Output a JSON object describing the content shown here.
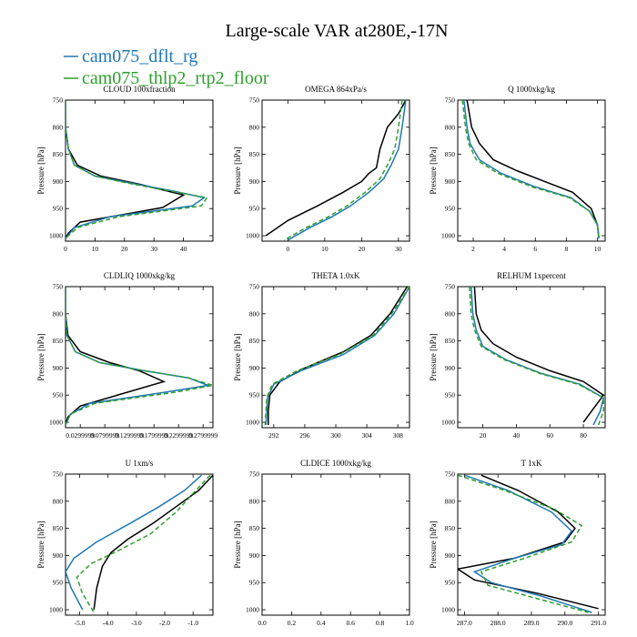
{
  "figure": {
    "title": "Large-scale VAR at280E,-17N",
    "legend": [
      {
        "label": "cam075_dflt_rg",
        "color": "#1f77b4"
      },
      {
        "label": "cam075_thlp2_rtp2_floor",
        "color": "#2ca02c"
      }
    ],
    "obs_color": "#000000"
  },
  "chart_data": [
    {
      "type": "line",
      "title": "CLOUD  100xfraction",
      "ylabel": "Pressure [hPa]",
      "ylim": [
        1010,
        750
      ],
      "yticks": [
        750,
        800,
        850,
        900,
        950,
        1000
      ],
      "xlim": [
        0,
        50
      ],
      "xticks": [
        0,
        10,
        20,
        30,
        40
      ],
      "xticklabels": [
        "0",
        "10",
        "20",
        "30",
        "40"
      ],
      "series": [
        {
          "color": "#000000",
          "dash": "",
          "x": [
            0,
            0,
            1,
            4,
            12,
            25,
            40,
            33,
            5,
            1,
            0
          ],
          "y": [
            750,
            800,
            840,
            870,
            890,
            905,
            925,
            948,
            975,
            995,
            1005
          ]
        },
        {
          "color": "#1f77b4",
          "dash": "",
          "x": [
            0,
            0,
            1,
            3,
            10,
            24,
            37,
            47,
            43,
            15,
            3,
            0
          ],
          "y": [
            750,
            800,
            840,
            870,
            890,
            905,
            918,
            930,
            945,
            965,
            985,
            1005
          ]
        },
        {
          "color": "#2ca02c",
          "dash": "5,3",
          "x": [
            0,
            0,
            1,
            3,
            10,
            23,
            36,
            48,
            46,
            18,
            4,
            0
          ],
          "y": [
            750,
            800,
            840,
            870,
            890,
            905,
            918,
            930,
            945,
            965,
            985,
            1005
          ]
        }
      ]
    },
    {
      "type": "line",
      "title": "OMEGA  864xPa/s",
      "ylabel": "",
      "ylim": [
        1010,
        750
      ],
      "yticks": [
        750,
        800,
        850,
        900,
        950,
        1000
      ],
      "xlim": [
        -7,
        33
      ],
      "xticks": [
        0,
        10,
        20,
        30
      ],
      "xticklabels": [
        "0",
        "10",
        "20",
        "30"
      ],
      "series": [
        {
          "color": "#000000",
          "dash": "",
          "x": [
            32,
            30,
            27,
            25,
            24,
            22,
            20,
            15,
            8,
            0,
            -6
          ],
          "y": [
            750,
            775,
            800,
            840,
            875,
            885,
            900,
            920,
            945,
            972,
            1000
          ]
        },
        {
          "color": "#1f77b4",
          "dash": "",
          "x": [
            32,
            31,
            30,
            28,
            26,
            22,
            17,
            12,
            6,
            0
          ],
          "y": [
            750,
            800,
            840,
            870,
            895,
            920,
            945,
            965,
            985,
            1008
          ]
        },
        {
          "color": "#2ca02c",
          "dash": "5,3",
          "x": [
            31,
            30,
            29,
            27,
            25,
            21,
            16,
            11,
            5,
            -1
          ],
          "y": [
            750,
            800,
            840,
            870,
            895,
            920,
            945,
            965,
            985,
            1008
          ]
        }
      ]
    },
    {
      "type": "line",
      "title": "Q  1000xkg/kg",
      "ylabel": "",
      "ylim": [
        1010,
        750
      ],
      "yticks": [
        750,
        800,
        850,
        900,
        950,
        1000
      ],
      "xlim": [
        1,
        10.5
      ],
      "xticks": [
        2,
        4,
        6,
        8,
        10
      ],
      "xticklabels": [
        "2",
        "4",
        "6",
        "8",
        "10"
      ],
      "series": [
        {
          "color": "#000000",
          "dash": "",
          "x": [
            1.6,
            1.9,
            2.4,
            3.3,
            4.8,
            6.6,
            8.4,
            9.6,
            10.0,
            10.1
          ],
          "y": [
            750,
            800,
            830,
            860,
            880,
            900,
            920,
            950,
            980,
            1005
          ]
        },
        {
          "color": "#1f77b4",
          "dash": "",
          "x": [
            1.4,
            1.6,
            1.8,
            2.4,
            3.8,
            6.0,
            8.3,
            9.5,
            10.0,
            10.1
          ],
          "y": [
            750,
            800,
            830,
            860,
            885,
            910,
            930,
            955,
            980,
            1005
          ]
        },
        {
          "color": "#2ca02c",
          "dash": "5,3",
          "x": [
            1.3,
            1.5,
            1.7,
            2.2,
            3.6,
            5.8,
            8.2,
            9.5,
            10.0,
            10.1
          ],
          "y": [
            750,
            800,
            830,
            860,
            885,
            910,
            930,
            955,
            980,
            1005
          ]
        }
      ]
    },
    {
      "type": "line",
      "title": "CLDLIQ  1000xkg/kg",
      "ylabel": "Pressure [hPa]",
      "ylim": [
        1010,
        750
      ],
      "yticks": [
        750,
        800,
        850,
        900,
        950,
        1000
      ],
      "xlim": [
        0,
        0.3
      ],
      "xticks": [
        0.02999,
        0.0799,
        0.13,
        0.18,
        0.23,
        0.28
      ],
      "xticklabels": [
        "0.0299999",
        "0.0799999",
        "0.1299999",
        "0.1799999",
        "0.2299999",
        "0.2799999"
      ],
      "series": [
        {
          "color": "#000000",
          "dash": "",
          "x": [
            0,
            0,
            0.005,
            0.03,
            0.09,
            0.15,
            0.2,
            0.03,
            0.005,
            0
          ],
          "y": [
            750,
            800,
            840,
            870,
            890,
            905,
            925,
            970,
            990,
            1005
          ]
        },
        {
          "color": "#1f77b4",
          "dash": "",
          "x": [
            0,
            0,
            0.003,
            0.02,
            0.07,
            0.16,
            0.25,
            0.29,
            0.2,
            0.05,
            0.01,
            0
          ],
          "y": [
            750,
            800,
            840,
            870,
            890,
            905,
            918,
            932,
            945,
            965,
            985,
            1005
          ]
        },
        {
          "color": "#2ca02c",
          "dash": "5,3",
          "x": [
            0,
            0,
            0.003,
            0.02,
            0.07,
            0.16,
            0.25,
            0.3,
            0.22,
            0.06,
            0.01,
            0
          ],
          "y": [
            750,
            800,
            840,
            870,
            890,
            905,
            918,
            932,
            945,
            965,
            985,
            1005
          ]
        }
      ]
    },
    {
      "type": "line",
      "title": "THETA  1.0xK",
      "ylabel": "",
      "ylim": [
        1010,
        750
      ],
      "yticks": [
        750,
        800,
        850,
        900,
        950,
        1000
      ],
      "xlim": [
        290.5,
        309.5
      ],
      "xticks": [
        292,
        296,
        300,
        304,
        308
      ],
      "xticklabels": [
        "292",
        "296",
        "300",
        "304",
        "308"
      ],
      "series": [
        {
          "color": "#000000",
          "dash": "",
          "x": [
            309.2,
            307,
            304.5,
            301,
            296,
            292.8,
            291.5,
            291.3,
            291.3
          ],
          "y": [
            750,
            800,
            840,
            870,
            900,
            925,
            950,
            980,
            1005
          ]
        },
        {
          "color": "#1f77b4",
          "dash": "",
          "x": [
            309.5,
            307.5,
            305,
            301,
            295.5,
            292,
            291.2,
            291.0
          ],
          "y": [
            750,
            800,
            840,
            875,
            905,
            930,
            955,
            1005
          ]
        },
        {
          "color": "#2ca02c",
          "dash": "5,3",
          "x": [
            309.5,
            307.2,
            304.8,
            300.5,
            295,
            291.8,
            291.1,
            290.9
          ],
          "y": [
            750,
            800,
            840,
            875,
            905,
            930,
            955,
            1005
          ]
        }
      ]
    },
    {
      "type": "line",
      "title": "RELHUM  1xpercent",
      "ylabel": "",
      "ylim": [
        1010,
        750
      ],
      "yticks": [
        750,
        800,
        850,
        900,
        950,
        1000
      ],
      "xlim": [
        5,
        93
      ],
      "xticks": [
        20,
        40,
        60,
        80
      ],
      "xticklabels": [
        "20",
        "40",
        "60",
        "80"
      ],
      "series": [
        {
          "color": "#000000",
          "dash": "",
          "x": [
            15,
            16,
            19,
            26,
            40,
            60,
            80,
            92,
            86,
            80
          ],
          "y": [
            750,
            800,
            830,
            855,
            880,
            905,
            925,
            950,
            975,
            1000
          ]
        },
        {
          "color": "#1f77b4",
          "dash": "",
          "x": [
            13,
            14,
            16,
            20,
            34,
            55,
            78,
            92,
            90,
            86
          ],
          "y": [
            750,
            800,
            830,
            860,
            885,
            910,
            930,
            955,
            980,
            1005
          ]
        },
        {
          "color": "#2ca02c",
          "dash": "5,3",
          "x": [
            12,
            13,
            15,
            19,
            33,
            54,
            77,
            92,
            92,
            89
          ],
          "y": [
            750,
            800,
            830,
            860,
            885,
            910,
            930,
            955,
            980,
            1005
          ]
        }
      ]
    },
    {
      "type": "line",
      "title": "U  1xm/s",
      "ylabel": "Pressure [hPa]",
      "ylim": [
        1010,
        750
      ],
      "yticks": [
        750,
        800,
        850,
        900,
        950,
        1000
      ],
      "xlim": [
        -5.5,
        -0.3
      ],
      "xticks": [
        -5,
        -4,
        -3,
        -2,
        -1
      ],
      "xticklabels": [
        "-5.0",
        "-4.0",
        "-3.0",
        "-2.0",
        "-1.0"
      ],
      "series": [
        {
          "color": "#000000",
          "dash": "",
          "x": [
            -0.3,
            -0.8,
            -1.6,
            -2.4,
            -3.3,
            -3.9,
            -4.2,
            -4.4,
            -4.5
          ],
          "y": [
            752,
            780,
            810,
            840,
            870,
            895,
            920,
            960,
            1000
          ]
        },
        {
          "color": "#1f77b4",
          "dash": "",
          "x": [
            -0.7,
            -1.3,
            -2.2,
            -3.2,
            -4.4,
            -5.2,
            -5.5,
            -5.3,
            -4.9
          ],
          "y": [
            752,
            780,
            810,
            840,
            875,
            905,
            930,
            960,
            1000
          ]
        },
        {
          "color": "#2ca02c",
          "dash": "5,3",
          "x": [
            -0.4,
            -0.9,
            -1.6,
            -2.5,
            -3.6,
            -4.6,
            -5.1,
            -4.9,
            -4.5
          ],
          "y": [
            752,
            780,
            820,
            860,
            890,
            915,
            940,
            970,
            1005
          ]
        }
      ]
    },
    {
      "type": "line",
      "title": "CLDICE  1000xkg/kg",
      "ylabel": "",
      "ylim": [
        1010,
        750
      ],
      "yticks": [
        750,
        800,
        850,
        900,
        950,
        1000
      ],
      "xlim": [
        0,
        1
      ],
      "xticks": [
        0,
        0.2,
        0.4,
        0.6,
        0.8,
        1.0
      ],
      "xticklabels": [
        "0.0",
        "0.2",
        "0.4",
        "0.6",
        "0.8",
        "1.0"
      ],
      "series": []
    },
    {
      "type": "line",
      "title": "T  1xK",
      "ylabel": "",
      "ylim": [
        1010,
        750
      ],
      "yticks": [
        750,
        800,
        850,
        900,
        950,
        1000
      ],
      "xlim": [
        286.8,
        291.2
      ],
      "xticks": [
        287,
        288,
        289,
        290,
        291
      ],
      "xticklabels": [
        "287.0",
        "288.0",
        "289.0",
        "290.0",
        "291.0"
      ],
      "series": [
        {
          "color": "#000000",
          "dash": "",
          "x": [
            287.5,
            288.6,
            289.8,
            290.3,
            290.0,
            288.5,
            286.8,
            287.3,
            289.2,
            291.0
          ],
          "y": [
            752,
            780,
            820,
            850,
            875,
            905,
            925,
            945,
            970,
            998
          ]
        },
        {
          "color": "#1f77b4",
          "dash": "",
          "x": [
            287.0,
            288.3,
            289.6,
            290.2,
            289.9,
            288.5,
            287.3,
            287.8,
            289.3,
            290.8
          ],
          "y": [
            752,
            780,
            820,
            855,
            880,
            905,
            930,
            950,
            975,
            1005
          ]
        },
        {
          "color": "#2ca02c",
          "dash": "5,3",
          "x": [
            286.8,
            288.2,
            289.7,
            290.5,
            290.2,
            288.8,
            287.5,
            287.7,
            289.2,
            290.7
          ],
          "y": [
            752,
            780,
            815,
            845,
            875,
            905,
            930,
            955,
            980,
            1005
          ]
        }
      ]
    }
  ]
}
